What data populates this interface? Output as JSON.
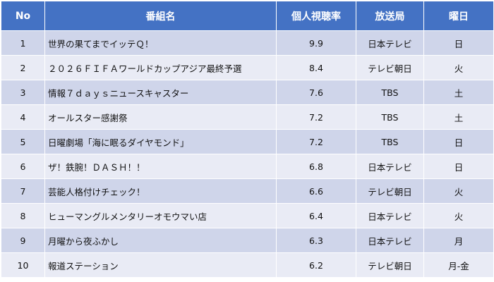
{
  "table": {
    "headers": {
      "no": "No",
      "title": "番組名",
      "rating": "個人視聴率",
      "station": "放送局",
      "day": "曜日"
    },
    "rows": [
      {
        "no": "1",
        "title": "世界の果てまでイッテＱ！",
        "rating": "9.9",
        "station": "日本テレビ",
        "day": "日"
      },
      {
        "no": "2",
        "title": "２０２６ＦＩＦＡワールドカップアジア最終予選",
        "rating": "8.4",
        "station": "テレビ朝日",
        "day": "火"
      },
      {
        "no": "3",
        "title": "情報７ｄａｙｓニュースキャスター",
        "rating": "7.6",
        "station": "TBS",
        "day": "土"
      },
      {
        "no": "4",
        "title": "オールスター感謝祭",
        "rating": "7.2",
        "station": "TBS",
        "day": "土"
      },
      {
        "no": "5",
        "title": "日曜劇場「海に眠るダイヤモンド」",
        "rating": "7.2",
        "station": "TBS",
        "day": "日"
      },
      {
        "no": "6",
        "title": "ザ！鉄腕！ＤＡＳＨ！！",
        "rating": "6.8",
        "station": "日本テレビ",
        "day": "日"
      },
      {
        "no": "7",
        "title": "芸能人格付けチェック！",
        "rating": "6.6",
        "station": "テレビ朝日",
        "day": "火"
      },
      {
        "no": "8",
        "title": "ヒューマングルメンタリーオモウマい店",
        "rating": "6.4",
        "station": "日本テレビ",
        "day": "火"
      },
      {
        "no": "9",
        "title": "月曜から夜ふかし",
        "rating": "6.3",
        "station": "日本テレビ",
        "day": "月"
      },
      {
        "no": "10",
        "title": "報道ステーション",
        "rating": "6.2",
        "station": "テレビ朝日",
        "day": "月-金"
      }
    ]
  },
  "colors": {
    "header_bg": "#4472c4",
    "row_odd_bg": "#cfd5ea",
    "row_even_bg": "#e9ebf5"
  }
}
